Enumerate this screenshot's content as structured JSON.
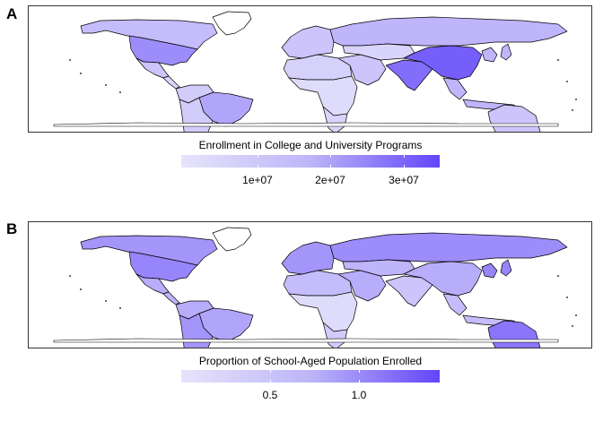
{
  "panels": [
    {
      "tag": "A",
      "legend_title": "Enrollment in College and University Programs",
      "ticks": [
        "1e+07",
        "2e+07",
        "3e+07"
      ],
      "colors": {
        "low": "#e6e4fb",
        "high": "#6246fb"
      },
      "levels": {
        "na_north": 0.25,
        "greenland": 0.0,
        "usa": 0.55,
        "mexico": 0.2,
        "central_am": 0.1,
        "south_am_north": 0.15,
        "brazil": 0.4,
        "south_am_south": 0.15,
        "europe": 0.2,
        "russia": 0.3,
        "north_africa": 0.12,
        "sub_saharan_africa": 0.05,
        "south_africa": 0.1,
        "middle_east": 0.2,
        "central_asia": 0.1,
        "south_asia": 0.75,
        "china": 0.85,
        "east_asia": 0.3,
        "southeast_asia": 0.3,
        "australia": 0.2
      }
    },
    {
      "tag": "B",
      "legend_title": "Proportion of School-Aged Population Enrolled",
      "ticks": [
        "0.5",
        "1.0"
      ],
      "colors": {
        "low": "#e6e4fb",
        "high": "#6246fb"
      },
      "levels": {
        "na_north": 0.5,
        "greenland": 0.0,
        "usa": 0.6,
        "mexico": 0.35,
        "central_am": 0.3,
        "south_am_north": 0.35,
        "brazil": 0.4,
        "south_am_south": 0.5,
        "europe": 0.5,
        "russia": 0.55,
        "north_africa": 0.25,
        "sub_saharan_africa": 0.05,
        "south_africa": 0.15,
        "middle_east": 0.35,
        "central_asia": 0.3,
        "south_asia": 0.2,
        "china": 0.35,
        "east_asia": 0.6,
        "southeast_asia": 0.25,
        "australia": 0.7
      }
    }
  ]
}
